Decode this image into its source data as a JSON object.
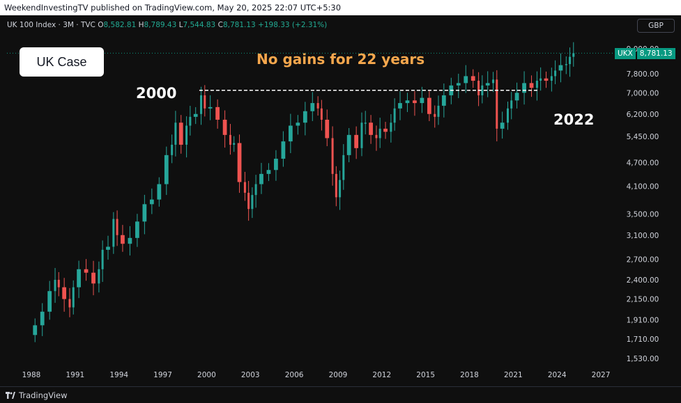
{
  "header": {
    "published_text": "WeekendInvestingTV published on TradingView.com, May 20, 2025 22:07 UTC+5:30"
  },
  "legend": {
    "symbol": "UK 100 Index · 3M · TVC",
    "o_label": "O",
    "o_value": "8,582.81",
    "h_label": "H",
    "h_value": "8,789.43",
    "l_label": "L",
    "l_value": "7,544.83",
    "c_label": "C",
    "c_value": "8,781.13",
    "change": "+198.33 (+2.31%)"
  },
  "currency": "GBP",
  "annotations": {
    "case_label": "UK Case",
    "headline": "No gains for 22 years",
    "start_year": "2000",
    "end_year": "2022"
  },
  "last_price": {
    "ticker": "UKX",
    "value": "8,781.13"
  },
  "footer": {
    "brand": "TradingView"
  },
  "colors": {
    "up": "#26a69a",
    "down": "#ef5350",
    "headline": "#f5a74d",
    "background": "#0f0f0f"
  },
  "chart_data": {
    "type": "candlestick",
    "title": "UK 100 Index · 3M · TVC",
    "scale": "log",
    "x_ticks": [
      "1988",
      "1991",
      "1994",
      "1997",
      "2000",
      "2003",
      "2006",
      "2009",
      "2012",
      "2015",
      "2018",
      "2021",
      "2024",
      "2027"
    ],
    "y_ticks": [
      "9,000.00",
      "7,800.00",
      "7,000.00",
      "6,200.00",
      "5,450.00",
      "4,700.00",
      "4,100.00",
      "3,500.00",
      "3,100.00",
      "2,700.00",
      "2,400.00",
      "2,150.00",
      "1,910.00",
      "1,710.00",
      "1,530.00"
    ],
    "ylim": [
      1500,
      9300
    ],
    "reference_line": {
      "value": 7100,
      "from": 1999.5,
      "to": 2022.75,
      "style": "dashed"
    },
    "series_points": [
      [
        1988.0,
        1750
      ],
      [
        1988.5,
        1850
      ],
      [
        1989.0,
        2000
      ],
      [
        1989.5,
        2250
      ],
      [
        1989.75,
        2400
      ],
      [
        1990.0,
        2300
      ],
      [
        1990.5,
        2150
      ],
      [
        1990.75,
        2050
      ],
      [
        1991.0,
        2300
      ],
      [
        1991.5,
        2550
      ],
      [
        1992.0,
        2500
      ],
      [
        1992.5,
        2350
      ],
      [
        1992.75,
        2550
      ],
      [
        1993.0,
        2850
      ],
      [
        1993.5,
        2900
      ],
      [
        1993.75,
        3400
      ],
      [
        1994.0,
        3100
      ],
      [
        1994.5,
        2950
      ],
      [
        1995.0,
        3050
      ],
      [
        1995.5,
        3350
      ],
      [
        1996.0,
        3700
      ],
      [
        1996.5,
        3800
      ],
      [
        1997.0,
        4150
      ],
      [
        1997.5,
        4900
      ],
      [
        1997.75,
        5200
      ],
      [
        1998.0,
        5900
      ],
      [
        1998.5,
        5200
      ],
      [
        1998.75,
        5800
      ],
      [
        1999.0,
        6100
      ],
      [
        1999.5,
        6200
      ],
      [
        1999.75,
        6900
      ],
      [
        2000.0,
        6400
      ],
      [
        2000.5,
        6450
      ],
      [
        2001.0,
        6000
      ],
      [
        2001.5,
        5500
      ],
      [
        2001.75,
        5200
      ],
      [
        2002.0,
        5250
      ],
      [
        2002.5,
        4200
      ],
      [
        2002.75,
        3950
      ],
      [
        2003.0,
        3600
      ],
      [
        2003.25,
        3900
      ],
      [
        2003.5,
        4150
      ],
      [
        2004.0,
        4400
      ],
      [
        2004.5,
        4500
      ],
      [
        2005.0,
        4800
      ],
      [
        2005.5,
        5300
      ],
      [
        2006.0,
        5800
      ],
      [
        2006.5,
        5900
      ],
      [
        2007.0,
        6300
      ],
      [
        2007.5,
        6600
      ],
      [
        2007.75,
        6400
      ],
      [
        2008.0,
        6000
      ],
      [
        2008.5,
        5400
      ],
      [
        2008.75,
        4400
      ],
      [
        2009.0,
        3850
      ],
      [
        2009.25,
        4250
      ],
      [
        2009.5,
        4900
      ],
      [
        2010.0,
        5500
      ],
      [
        2010.5,
        5100
      ],
      [
        2010.75,
        5900
      ],
      [
        2011.0,
        5900
      ],
      [
        2011.5,
        5500
      ],
      [
        2011.75,
        5400
      ],
      [
        2012.0,
        5700
      ],
      [
        2012.5,
        5600
      ],
      [
        2012.75,
        5900
      ],
      [
        2013.0,
        6400
      ],
      [
        2013.5,
        6600
      ],
      [
        2014.0,
        6700
      ],
      [
        2014.5,
        6600
      ],
      [
        2015.0,
        6800
      ],
      [
        2015.5,
        6200
      ],
      [
        2015.75,
        6100
      ],
      [
        2016.0,
        6500
      ],
      [
        2016.5,
        6900
      ],
      [
        2017.0,
        7300
      ],
      [
        2017.5,
        7400
      ],
      [
        2018.0,
        7700
      ],
      [
        2018.5,
        7500
      ],
      [
        2018.75,
        6900
      ],
      [
        2019.0,
        7300
      ],
      [
        2019.5,
        7400
      ],
      [
        2019.75,
        7550
      ],
      [
        2020.0,
        5700
      ],
      [
        2020.5,
        5900
      ],
      [
        2020.75,
        6400
      ],
      [
        2021.0,
        6700
      ],
      [
        2021.5,
        7000
      ],
      [
        2022.0,
        7400
      ],
      [
        2022.5,
        7200
      ],
      [
        2022.75,
        7500
      ],
      [
        2023.0,
        7600
      ],
      [
        2023.5,
        7500
      ],
      [
        2023.75,
        7700
      ],
      [
        2024.0,
        7950
      ],
      [
        2024.5,
        8200
      ],
      [
        2024.75,
        8250
      ],
      [
        2025.0,
        8600
      ],
      [
        2025.25,
        8781
      ]
    ]
  }
}
